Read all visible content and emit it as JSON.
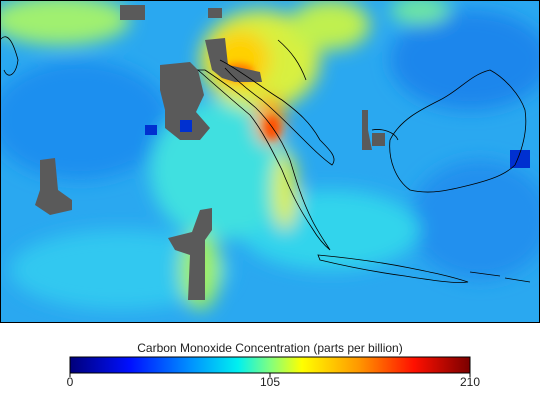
{
  "legend": {
    "title": "Carbon Monoxide Concentration (parts per billion)",
    "range": [
      0,
      210
    ],
    "ticks": [
      0,
      105,
      210
    ]
  }
}
